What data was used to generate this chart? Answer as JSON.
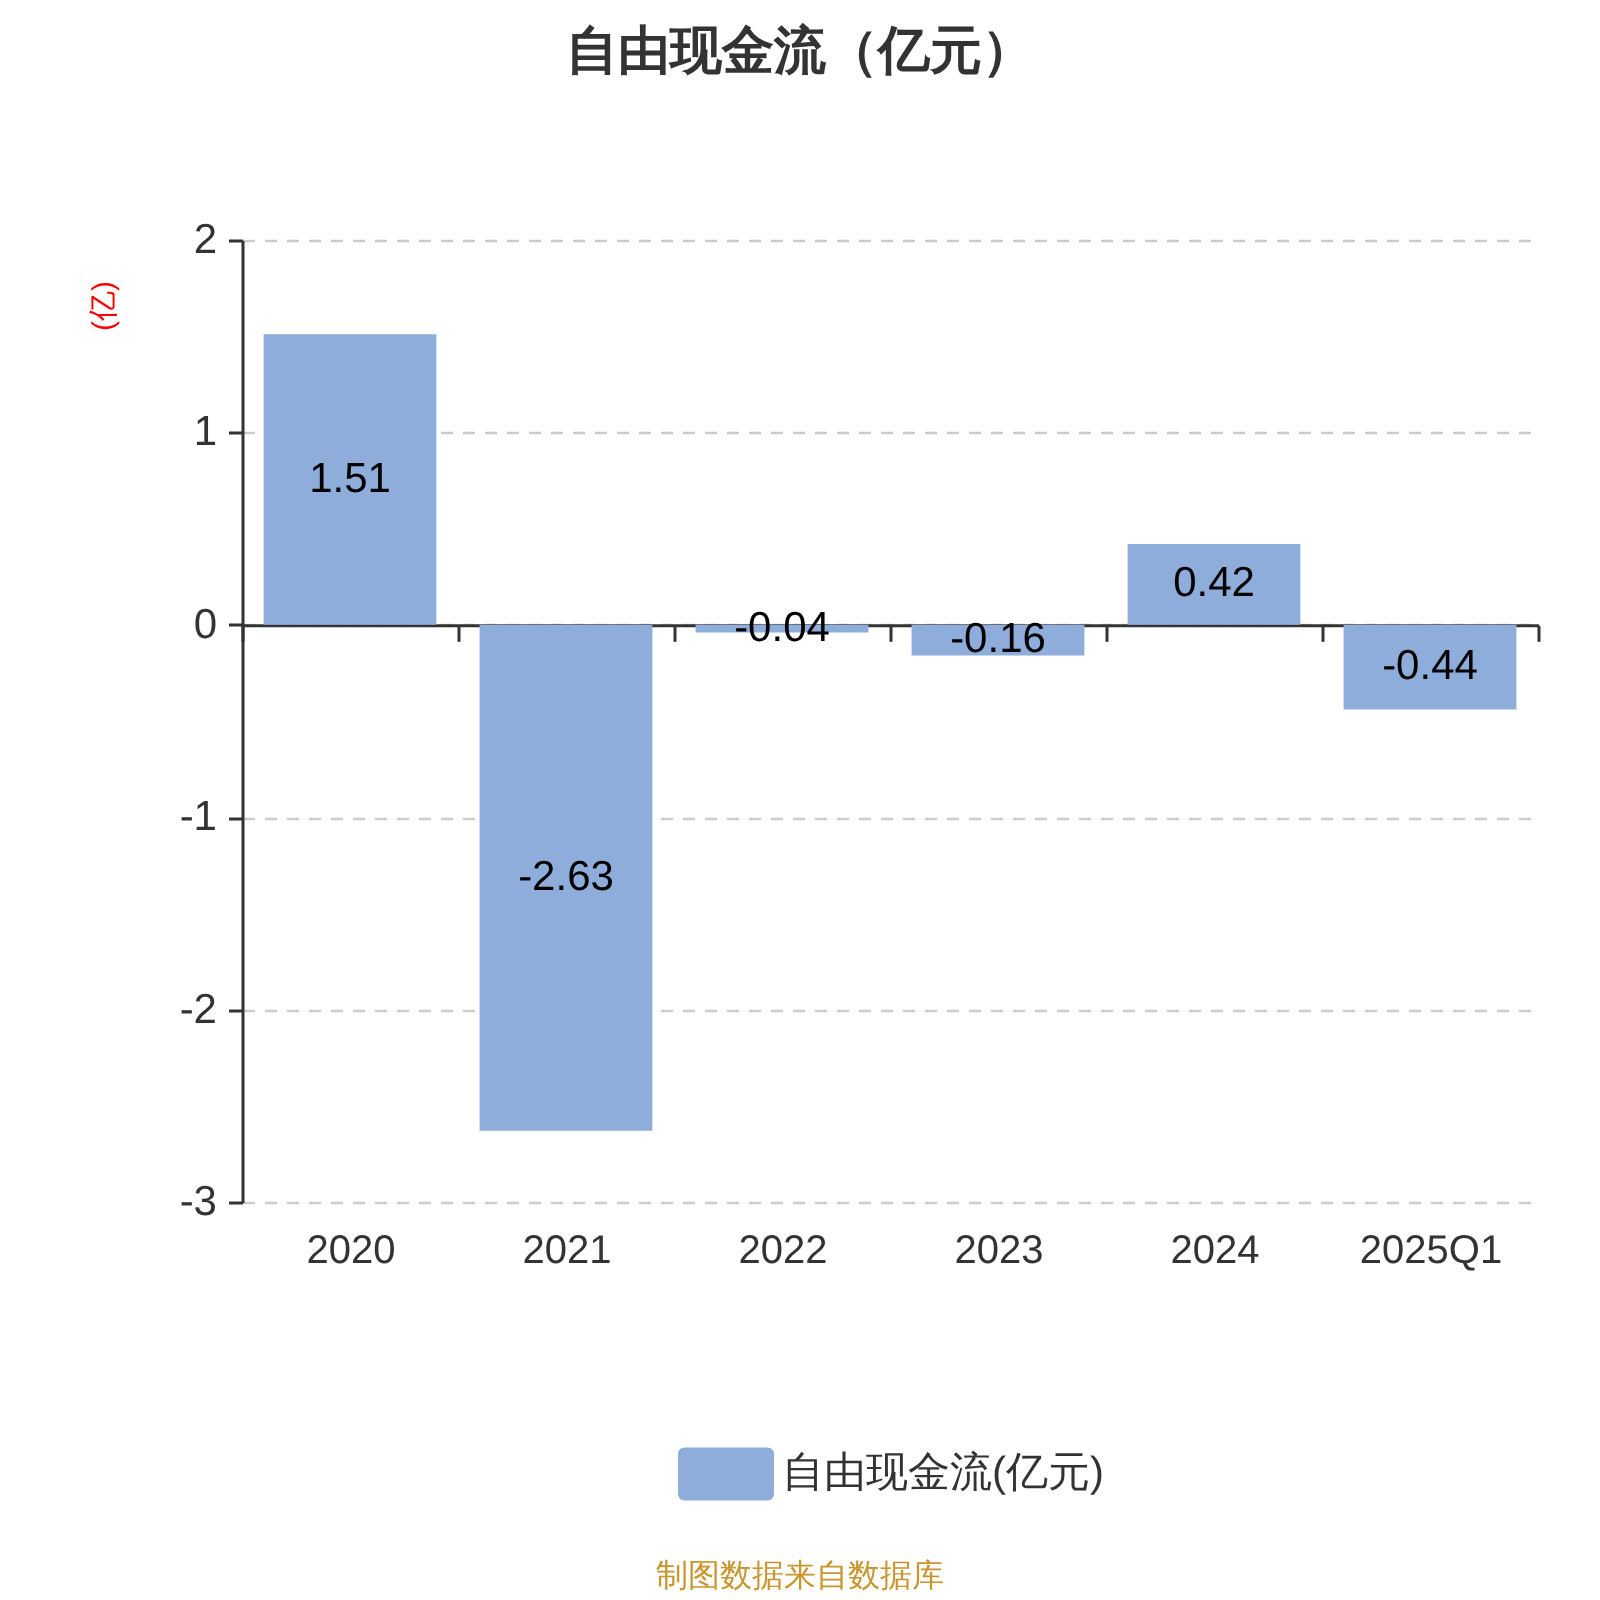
{
  "chart_data": {
    "type": "bar",
    "title": "自由现金流（亿元）",
    "ylabel": "(亿)",
    "categories": [
      "2020",
      "2021",
      "2022",
      "2023",
      "2024",
      "2025Q1"
    ],
    "series": [
      {
        "name": "自由现金流(亿元)",
        "color": "#8eaddb",
        "values": [
          1.51,
          -2.63,
          -0.04,
          -0.16,
          0.42,
          -0.44
        ]
      }
    ],
    "ylim": [
      -3,
      2
    ],
    "yticks": [
      -3,
      -2,
      -1,
      0,
      1,
      2
    ],
    "grid": "y",
    "data_labels": true,
    "legend": "bottom",
    "annotations": [
      "制图数据来自数据库"
    ]
  }
}
